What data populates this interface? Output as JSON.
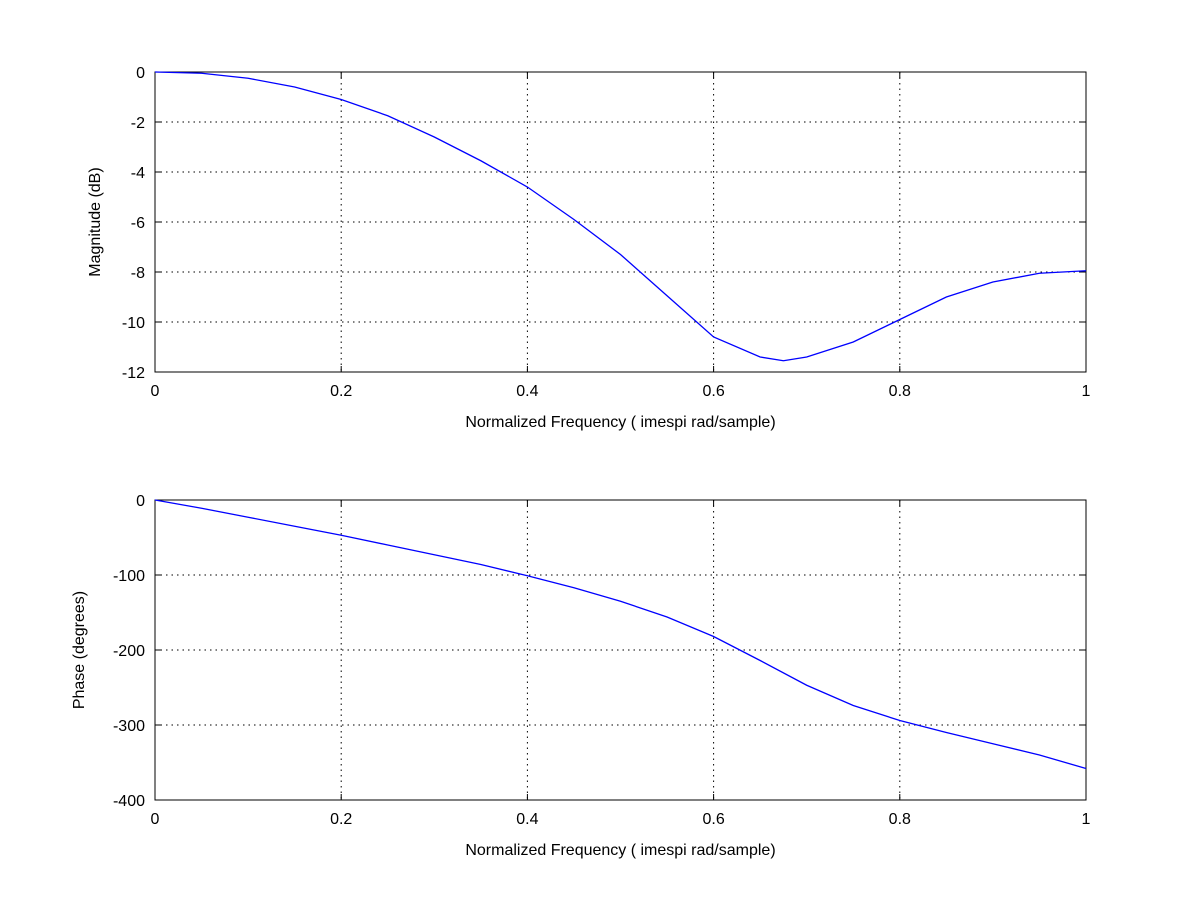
{
  "chart_data": [
    {
      "type": "line",
      "xlabel": "Normalized Frequency ( imespi rad/sample)",
      "ylabel": "Magnitude (dB)",
      "xlim": [
        0,
        1
      ],
      "ylim": [
        -12,
        0
      ],
      "xticks": [
        0,
        0.2,
        0.4,
        0.6,
        0.8,
        1
      ],
      "xtick_labels": [
        "0",
        "0.2",
        "0.4",
        "0.6",
        "0.8",
        "1"
      ],
      "yticks": [
        0,
        -2,
        -4,
        -6,
        -8,
        -10,
        -12
      ],
      "ytick_labels": [
        "0",
        "-2",
        "-4",
        "-6",
        "-8",
        "-10",
        "-12"
      ],
      "grid": true,
      "series": [
        {
          "color": "#0000ff",
          "x": [
            0,
            0.05,
            0.1,
            0.15,
            0.2,
            0.25,
            0.3,
            0.35,
            0.4,
            0.45,
            0.5,
            0.55,
            0.6,
            0.65,
            0.675,
            0.7,
            0.75,
            0.8,
            0.85,
            0.9,
            0.95,
            1.0
          ],
          "y": [
            0,
            -0.05,
            -0.25,
            -0.6,
            -1.1,
            -1.75,
            -2.6,
            -3.55,
            -4.6,
            -5.9,
            -7.3,
            -8.95,
            -10.6,
            -11.4,
            -11.55,
            -11.4,
            -10.8,
            -9.9,
            -9.0,
            -8.4,
            -8.05,
            -7.95
          ]
        }
      ]
    },
    {
      "type": "line",
      "xlabel": "Normalized Frequency ( imespi rad/sample)",
      "ylabel": "Phase (degrees)",
      "xlim": [
        0,
        1
      ],
      "ylim": [
        -400,
        0
      ],
      "xticks": [
        0,
        0.2,
        0.4,
        0.6,
        0.8,
        1
      ],
      "xtick_labels": [
        "0",
        "0.2",
        "0.4",
        "0.6",
        "0.8",
        "1"
      ],
      "yticks": [
        0,
        -100,
        -200,
        -300,
        -400
      ],
      "ytick_labels": [
        "0",
        "-100",
        "-200",
        "-300",
        "-400"
      ],
      "grid": true,
      "series": [
        {
          "color": "#0000ff",
          "x": [
            0,
            0.05,
            0.1,
            0.15,
            0.2,
            0.25,
            0.3,
            0.35,
            0.4,
            0.45,
            0.5,
            0.55,
            0.6,
            0.65,
            0.7,
            0.75,
            0.8,
            0.85,
            0.9,
            0.95,
            1.0
          ],
          "y": [
            0,
            -11,
            -23,
            -35,
            -47,
            -60,
            -73,
            -86,
            -101,
            -117,
            -135,
            -156,
            -182,
            -214,
            -247,
            -274,
            -294,
            -310,
            -325,
            -340,
            -358
          ]
        }
      ]
    }
  ]
}
